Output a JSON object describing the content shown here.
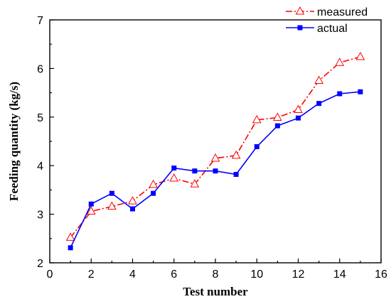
{
  "chart_data": {
    "type": "line",
    "xlabel": "Test number",
    "ylabel": "Feeding quantity (kg/s)",
    "xlim": [
      0,
      16
    ],
    "ylim": [
      2,
      7
    ],
    "x_ticks": [
      0,
      2,
      4,
      6,
      8,
      10,
      12,
      14,
      16
    ],
    "y_ticks": [
      2,
      3,
      4,
      5,
      6,
      7
    ],
    "grid": false,
    "legend_position": "top-right",
    "x": [
      1,
      2,
      3,
      4,
      5,
      6,
      7,
      8,
      9,
      10,
      11,
      12,
      13,
      14,
      15
    ],
    "series": [
      {
        "name": "measured",
        "color": "#ff0000",
        "line_style": "dash-dot",
        "marker": "open-triangle",
        "values": [
          2.52,
          3.06,
          3.16,
          3.27,
          3.61,
          3.74,
          3.62,
          4.15,
          4.21,
          4.94,
          4.99,
          5.15,
          5.75,
          6.12,
          6.24
        ]
      },
      {
        "name": "actual",
        "color": "#0000ff",
        "line_style": "solid",
        "marker": "filled-square",
        "values": [
          2.31,
          3.21,
          3.43,
          3.11,
          3.43,
          3.95,
          3.89,
          3.89,
          3.82,
          4.39,
          4.82,
          4.98,
          5.28,
          5.48,
          5.52
        ]
      }
    ]
  }
}
